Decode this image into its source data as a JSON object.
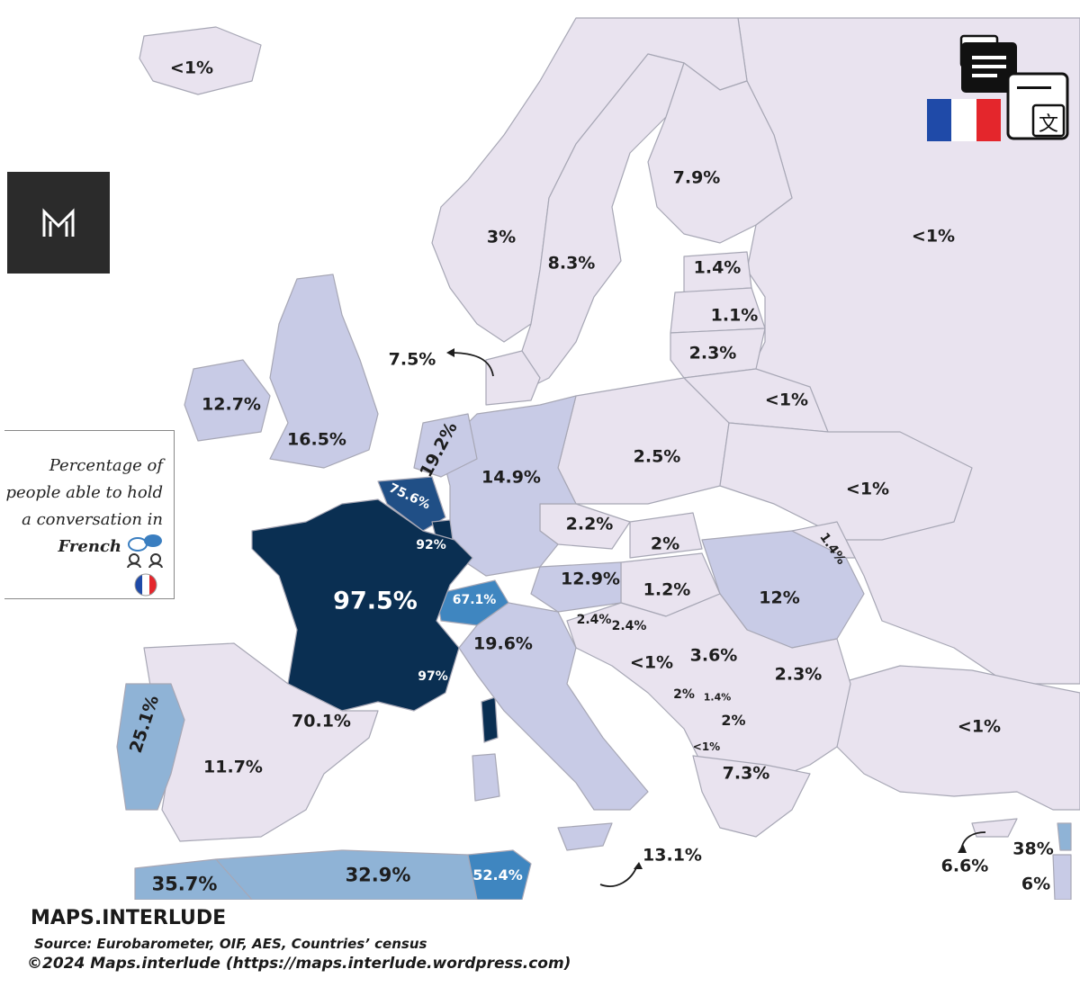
{
  "colors": {
    "sea": "#ffffff",
    "low": "#e9e3ef",
    "mid": "#c8cbe6",
    "blue_light": "#8fb3d6",
    "blue_mid": "#3f86c0",
    "blue_dark": "#204f86",
    "france": "#0a2f52",
    "border": "#a7a7b5"
  },
  "legend": {
    "line1": "Percentage of",
    "line2": "people able to hold",
    "line3": "a conversation in",
    "line4": "French",
    "icons": [
      "conversation-icon",
      "france-flag-icon"
    ]
  },
  "logo": {
    "text": "M"
  },
  "labels": {
    "iceland": "<1%",
    "norway": "3%",
    "sweden": "8.3%",
    "finland": "7.9%",
    "russia": "<1%",
    "estonia": "1.4%",
    "latvia": "1.1%",
    "lithuania": "2.3%",
    "denmark": "7.5%",
    "ireland": "12.7%",
    "uk": "16.5%",
    "netherlands": "19.2%",
    "belgium": "75.6%",
    "luxembourg": "92%",
    "germany": "14.9%",
    "poland": "2.5%",
    "belarus": "<1%",
    "ukraine": "<1%",
    "czechia": "2.2%",
    "slovakia": "2%",
    "moldova": "1.4%",
    "austria": "12.9%",
    "hungary": "1.2%",
    "romania": "12%",
    "switzerland": "67.1%",
    "slovenia": "2.4%",
    "croatia": "2.4%",
    "bosnia": "<1%",
    "serbia": "3.6%",
    "bulgaria": "2.3%",
    "montenegro": "2%",
    "kosovo": "1.4%",
    "north_macedonia": "2%",
    "albania": "<1%",
    "greece": "7.3%",
    "turkey": "<1%",
    "france": "97.5%",
    "monaco": "97%",
    "italy": "19.6%",
    "spain": "70.1%",
    "spain_main": "11.7%",
    "portugal": "25.1%",
    "malta": "13.1%",
    "cyprus": "6.6%",
    "lebanon": "38%",
    "israel": "6%",
    "morocco": "35.7%",
    "algeria": "32.9%",
    "tunisia": "52.4%"
  },
  "footer": {
    "brand": "MAPS.INTERLUDE",
    "source": "Source: Eurobarometer, OIF, AES, Countries’ census",
    "copyright": "©2024 Maps.interlude (https://maps.interlude.wordpress.com)"
  }
}
